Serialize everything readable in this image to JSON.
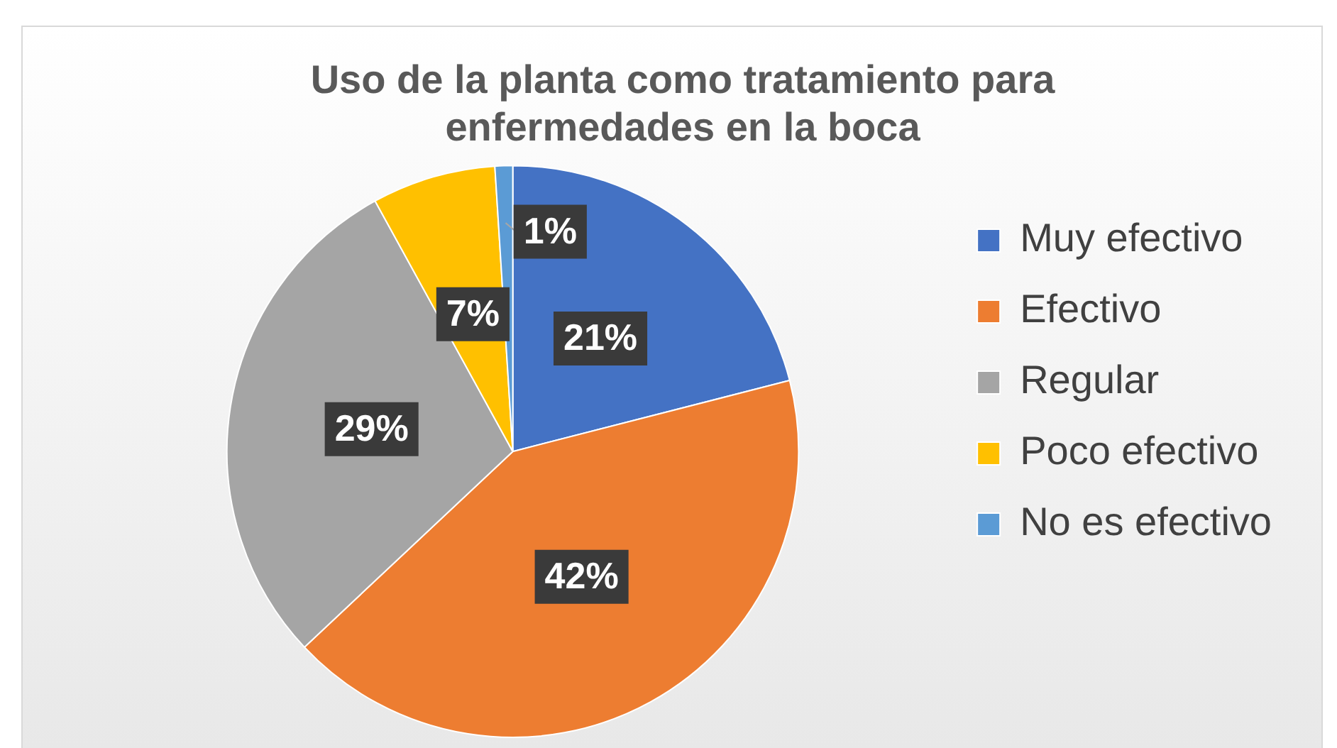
{
  "chart_data": {
    "type": "pie",
    "title": "Uso de la planta como tratamiento para enfermedades en la boca",
    "categories": [
      "Muy efectivo",
      "Efectivo",
      "Regular",
      "Poco efectivo",
      "No es efectivo"
    ],
    "values": [
      21,
      42,
      29,
      7,
      1
    ],
    "colors": [
      "#4472c4",
      "#ed7d31",
      "#a5a5a5",
      "#ffc000",
      "#5b9bd5"
    ],
    "value_labels": [
      "21%",
      "42%",
      "29%",
      "7%",
      "1%"
    ],
    "legend": "right"
  }
}
